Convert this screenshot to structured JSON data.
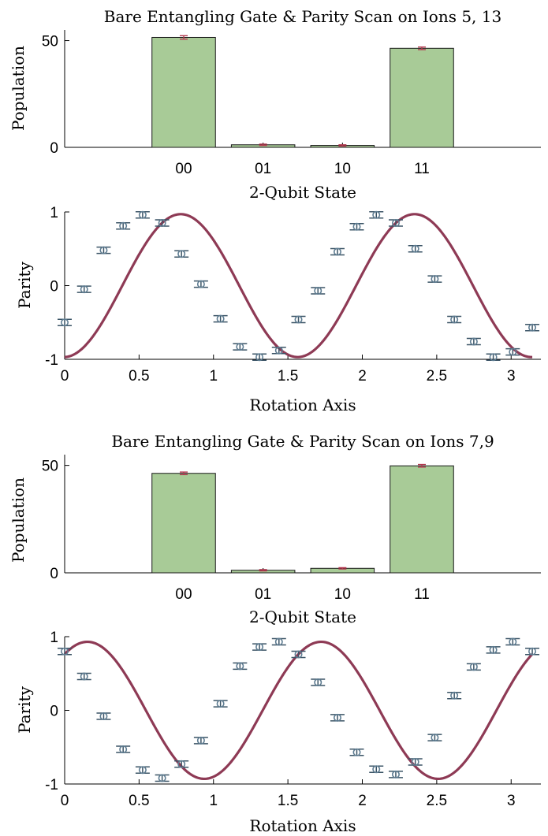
{
  "chart_data": [
    {
      "type": "bar",
      "title": "Bare Entangling Gate & Parity Scan on Ions 5, 13",
      "xlabel": "2-Qubit State",
      "ylabel": "Population",
      "categories": [
        "00",
        "01",
        "10",
        "11"
      ],
      "values": [
        51.5,
        1.2,
        0.9,
        46.4
      ],
      "errors": [
        0.8,
        0.3,
        0.3,
        0.6
      ],
      "ylim": [
        0,
        55
      ],
      "yticks": [
        0,
        50
      ],
      "bar_color": "#a8cb97",
      "error_color": "#b3394f"
    },
    {
      "type": "scatter",
      "title": "",
      "xlabel": "Rotation Axis",
      "ylabel": "Parity",
      "xlim": [
        0,
        3.2
      ],
      "ylim": [
        -1,
        1
      ],
      "xticks": [
        "0",
        "0.5",
        "1",
        "1.5",
        "2",
        "2.5",
        "3"
      ],
      "xtick_values": [
        0,
        0.5,
        1,
        1.5,
        2,
        2.5,
        3
      ],
      "yticks": [
        "-1",
        "0",
        "1"
      ],
      "ytick_values": [
        -1,
        0,
        1
      ],
      "x": [
        0,
        0.131,
        0.262,
        0.393,
        0.524,
        0.655,
        0.785,
        0.916,
        1.047,
        1.178,
        1.309,
        1.44,
        1.571,
        1.702,
        1.833,
        1.963,
        2.094,
        2.225,
        2.356,
        2.487,
        2.618,
        2.749,
        2.88,
        3.011,
        3.142
      ],
      "y": [
        -0.5,
        -0.05,
        0.48,
        0.81,
        0.96,
        0.85,
        0.43,
        0.02,
        -0.45,
        -0.83,
        -0.97,
        -0.88,
        -0.46,
        -0.07,
        0.46,
        0.8,
        0.96,
        0.85,
        0.5,
        0.09,
        -0.46,
        -0.76,
        -0.97,
        -0.9,
        -0.57
      ],
      "fit": {
        "amplitude": 0.97,
        "frequency": 4,
        "phase": -1.55,
        "offset": 0
      },
      "marker_color": "#5f7d92",
      "fit_color": "#8e3a55"
    },
    {
      "type": "bar",
      "title": "Bare Entangling Gate & Parity Scan on Ions 7,9",
      "xlabel": "2-Qubit State",
      "ylabel": "Population",
      "categories": [
        "00",
        "01",
        "10",
        "11"
      ],
      "values": [
        46.3,
        1.2,
        2.1,
        49.8
      ],
      "errors": [
        0.6,
        0.3,
        0.3,
        0.6
      ],
      "ylim": [
        0,
        55
      ],
      "yticks": [
        0,
        50
      ],
      "bar_color": "#a8cb97",
      "error_color": "#b3394f"
    },
    {
      "type": "scatter",
      "title": "",
      "xlabel": "Rotation Axis",
      "ylabel": "Parity",
      "xlim": [
        0,
        3.2
      ],
      "ylim": [
        -1,
        1
      ],
      "xticks": [
        "0",
        "0.5",
        "1",
        "1.5",
        "2",
        "2.5",
        "3"
      ],
      "xtick_values": [
        0,
        0.5,
        1,
        1.5,
        2,
        2.5,
        3
      ],
      "yticks": [
        "-1",
        "0",
        "1"
      ],
      "ytick_values": [
        -1,
        0,
        1
      ],
      "x": [
        0,
        0.131,
        0.262,
        0.393,
        0.524,
        0.655,
        0.785,
        0.916,
        1.047,
        1.178,
        1.309,
        1.44,
        1.571,
        1.702,
        1.833,
        1.963,
        2.094,
        2.225,
        2.356,
        2.487,
        2.618,
        2.749,
        2.88,
        3.011,
        3.142
      ],
      "y": [
        0.8,
        0.46,
        -0.08,
        -0.53,
        -0.81,
        -0.92,
        -0.73,
        -0.41,
        0.09,
        0.6,
        0.86,
        0.93,
        0.76,
        0.38,
        -0.1,
        -0.57,
        -0.8,
        -0.87,
        -0.7,
        -0.37,
        0.2,
        0.59,
        0.82,
        0.93,
        0.8
      ],
      "fit": {
        "amplitude": 0.93,
        "frequency": 4,
        "phase": 0.96,
        "offset": 0
      },
      "marker_color": "#5f7d92",
      "fit_color": "#8e3a55"
    }
  ]
}
